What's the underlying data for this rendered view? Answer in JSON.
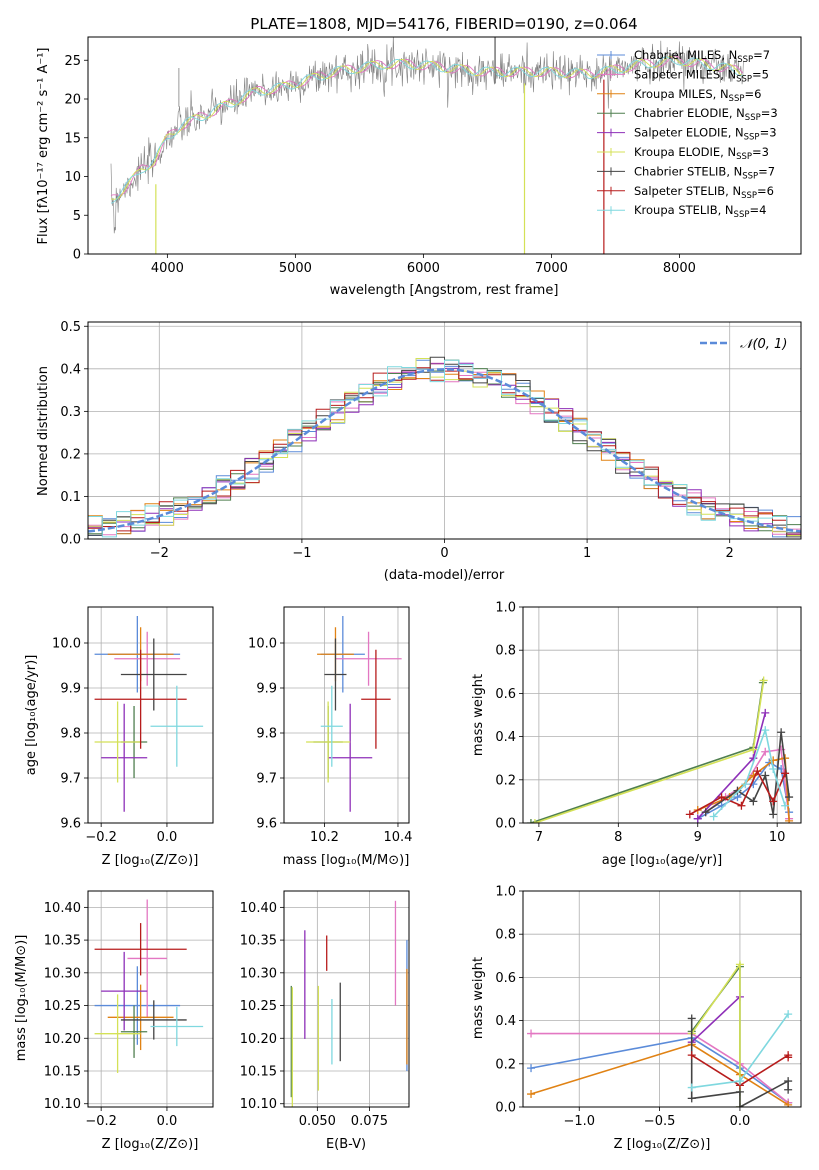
{
  "colors": {
    "Chabrier MILES": "#5b8bd9",
    "Salpeter MILES": "#e377c2",
    "Kroupa MILES": "#e08214",
    "Chabrier ELODIE": "#4f7f4f",
    "Salpeter ELODIE": "#8e2fb8",
    "Kroupa ELODIE": "#d4e157",
    "Chabrier STELIB": "#444444",
    "Salpeter STELIB": "#b71c1c",
    "Kroupa STELIB": "#7fd8df",
    "data": "#7f7f7f",
    "normal": "#5b8bd9"
  },
  "chart_data": [
    {
      "type": "line",
      "id": "spectrum",
      "title": "PLATE=1808, MJD=54176, FIBERID=0190, z=0.064",
      "xlabel": "wavelength [Angstrom, rest frame]",
      "ylabel": "Flux [fλ10⁻¹⁷ erg cm⁻² s⁻¹ A⁻¹]",
      "xlim": [
        3380,
        8950
      ],
      "ylim": [
        0,
        28
      ],
      "xticks": [
        4000,
        5000,
        6000,
        7000,
        8000
      ],
      "yticks": [
        0,
        5,
        10,
        15,
        20,
        25
      ],
      "legend_position": "right",
      "legend": [
        {
          "key": "Chabrier MILES",
          "label": "Chabrier MILES, N",
          "n": "=7"
        },
        {
          "key": "Salpeter MILES",
          "label": "Salpeter MILES, N",
          "n": "=5"
        },
        {
          "key": "Kroupa MILES",
          "label": "Kroupa MILES, N",
          "n": "=6"
        },
        {
          "key": "Chabrier ELODIE",
          "label": "Chabrier ELODIE, N",
          "n": "=3"
        },
        {
          "key": "Salpeter ELODIE",
          "label": "Salpeter ELODIE, N",
          "n": "=3"
        },
        {
          "key": "Kroupa ELODIE",
          "label": "Kroupa ELODIE, N",
          "n": "=3"
        },
        {
          "key": "Chabrier STELIB",
          "label": "Chabrier STELIB, N",
          "n": "=7"
        },
        {
          "key": "Salpeter STELIB",
          "label": "Salpeter STELIB, N",
          "n": "=6"
        },
        {
          "key": "Kroupa STELIB",
          "label": "Kroupa STELIB, N",
          "n": "=4"
        }
      ],
      "continuum": [
        [
          3560,
          7
        ],
        [
          3700,
          9
        ],
        [
          3800,
          11
        ],
        [
          3900,
          12
        ],
        [
          4000,
          15
        ],
        [
          4100,
          16.5
        ],
        [
          4300,
          18
        ],
        [
          4500,
          19.5
        ],
        [
          4700,
          21
        ],
        [
          4900,
          21.5
        ],
        [
          5100,
          22.5
        ],
        [
          5300,
          23.5
        ],
        [
          5500,
          24
        ],
        [
          5700,
          24.5
        ],
        [
          5900,
          24.5
        ],
        [
          6100,
          24.2
        ],
        [
          6300,
          23.8
        ],
        [
          6500,
          23.5
        ],
        [
          6700,
          23.5
        ],
        [
          6900,
          23.5
        ],
        [
          7100,
          23.4
        ],
        [
          7300,
          23.2
        ],
        [
          7500,
          23.8
        ],
        [
          7700,
          24.5
        ],
        [
          8000,
          25
        ],
        [
          8300,
          24.2
        ],
        [
          8500,
          23.5
        ]
      ]
    },
    {
      "type": "line",
      "id": "residual-histogram",
      "xlabel": "(data-model)/error",
      "ylabel": "Normed distribution",
      "xlim": [
        -2.5,
        2.5
      ],
      "ylim": [
        0,
        0.51
      ],
      "xticks": [
        -2,
        -1,
        0,
        1,
        2
      ],
      "yticks": [
        0.0,
        0.1,
        0.2,
        0.3,
        0.4,
        0.5
      ],
      "legend_label": "𝒩(0, 1)",
      "bin_width": 0.1
    },
    {
      "type": "scatter",
      "id": "age-vs-Z",
      "xlabel": "Z [log₁₀(Z/Z⊙)]",
      "ylabel": "age  [log₁₀(age/yr)]",
      "xlim": [
        -0.24,
        0.14
      ],
      "ylim": [
        9.6,
        10.08
      ],
      "xticks": [
        -0.2,
        0.0
      ],
      "yticks": [
        9.6,
        9.7,
        9.8,
        9.9,
        10.0
      ],
      "points": [
        {
          "key": "Chabrier MILES",
          "x": -0.09,
          "xerr": 0.13,
          "y": 9.975,
          "yerr": 0.085
        },
        {
          "key": "Salpeter MILES",
          "x": -0.06,
          "xerr": 0.1,
          "y": 9.965,
          "yerr": 0.06
        },
        {
          "key": "Kroupa MILES",
          "x": -0.08,
          "xerr": 0.1,
          "y": 9.975,
          "yerr": 0.06
        },
        {
          "key": "Chabrier ELODIE",
          "x": -0.1,
          "xerr": 0.04,
          "y": 9.78,
          "yerr": 0.08
        },
        {
          "key": "Salpeter ELODIE",
          "x": -0.13,
          "xerr": 0.07,
          "y": 9.745,
          "yerr": 0.12
        },
        {
          "key": "Kroupa ELODIE",
          "x": -0.15,
          "xerr": 0.07,
          "y": 9.78,
          "yerr": 0.09
        },
        {
          "key": "Chabrier STELIB",
          "x": -0.04,
          "xerr": 0.1,
          "y": 9.93,
          "yerr": 0.08
        },
        {
          "key": "Salpeter STELIB",
          "x": -0.08,
          "xerr": 0.14,
          "y": 9.875,
          "yerr": 0.11
        },
        {
          "key": "Kroupa STELIB",
          "x": 0.03,
          "xerr": 0.08,
          "y": 9.815,
          "yerr": 0.09
        }
      ]
    },
    {
      "type": "scatter",
      "id": "age-vs-mass",
      "xlabel": "mass [log₁₀(M/M⊙)]",
      "xlim": [
        10.09,
        10.43
      ],
      "ylim": [
        9.6,
        10.08
      ],
      "xticks": [
        10.2,
        10.4
      ],
      "yticks": [
        9.6,
        9.7,
        9.8,
        9.9,
        10.0
      ],
      "points": [
        {
          "key": "Chabrier MILES",
          "x": 10.25,
          "xerr": 0.06,
          "y": 9.975,
          "yerr": 0.085
        },
        {
          "key": "Salpeter MILES",
          "x": 10.32,
          "xerr": 0.09,
          "y": 9.965,
          "yerr": 0.06
        },
        {
          "key": "Kroupa MILES",
          "x": 10.23,
          "xerr": 0.05,
          "y": 9.975,
          "yerr": 0.06
        },
        {
          "key": "Chabrier ELODIE",
          "x": 10.21,
          "xerr": 0.04,
          "y": 9.78,
          "yerr": 0.08
        },
        {
          "key": "Salpeter ELODIE",
          "x": 10.27,
          "xerr": 0.06,
          "y": 9.745,
          "yerr": 0.12
        },
        {
          "key": "Kroupa ELODIE",
          "x": 10.21,
          "xerr": 0.06,
          "y": 9.78,
          "yerr": 0.09
        },
        {
          "key": "Chabrier STELIB",
          "x": 10.23,
          "xerr": 0.03,
          "y": 9.93,
          "yerr": 0.08
        },
        {
          "key": "Salpeter STELIB",
          "x": 10.34,
          "xerr": 0.04,
          "y": 9.875,
          "yerr": 0.11
        },
        {
          "key": "Kroupa STELIB",
          "x": 10.22,
          "xerr": 0.03,
          "y": 9.815,
          "yerr": 0.09
        }
      ]
    },
    {
      "type": "line",
      "id": "weight-vs-age",
      "xlabel": "age  [log₁₀(age/yr)]",
      "ylabel": "mass weight",
      "xlim": [
        6.8,
        10.3
      ],
      "ylim": [
        0,
        1
      ],
      "xticks": [
        7,
        8,
        9,
        10
      ],
      "yticks": [
        0.0,
        0.2,
        0.4,
        0.6,
        0.8,
        1.0
      ],
      "series": [
        {
          "key": "Chabrier MILES",
          "x": [
            9.0,
            9.3,
            9.5,
            9.7,
            9.9,
            10.05,
            10.15
          ],
          "y": [
            0.02,
            0.08,
            0.12,
            0.18,
            0.28,
            0.25,
            0.05
          ]
        },
        {
          "key": "Salpeter MILES",
          "x": [
            9.1,
            9.35,
            9.6,
            9.85,
            10.05,
            10.15
          ],
          "y": [
            0.05,
            0.12,
            0.18,
            0.33,
            0.34,
            0.02
          ]
        },
        {
          "key": "Kroupa MILES",
          "x": [
            9.0,
            9.4,
            9.7,
            9.95,
            10.1,
            10.15
          ],
          "y": [
            0.06,
            0.12,
            0.22,
            0.29,
            0.3,
            0.01
          ]
        },
        {
          "key": "Chabrier ELODIE",
          "x": [
            6.9,
            9.7,
            9.82
          ],
          "y": [
            0.0,
            0.35,
            0.65
          ]
        },
        {
          "key": "Salpeter ELODIE",
          "x": [
            9.0,
            9.7,
            9.85
          ],
          "y": [
            0.02,
            0.3,
            0.51
          ]
        },
        {
          "key": "Kroupa ELODIE",
          "x": [
            6.95,
            9.7,
            9.83
          ],
          "y": [
            0.0,
            0.34,
            0.66
          ]
        },
        {
          "key": "Chabrier STELIB",
          "x": [
            9.1,
            9.5,
            9.7,
            9.85,
            9.95,
            10.05,
            10.15
          ],
          "y": [
            0.05,
            0.15,
            0.1,
            0.22,
            0.04,
            0.42,
            0.12
          ]
        },
        {
          "key": "Salpeter STELIB",
          "x": [
            8.9,
            9.3,
            9.55,
            9.75,
            9.95,
            10.1
          ],
          "y": [
            0.04,
            0.12,
            0.08,
            0.24,
            0.1,
            0.23
          ]
        },
        {
          "key": "Kroupa STELIB",
          "x": [
            9.2,
            9.6,
            9.85,
            9.95,
            10.1
          ],
          "y": [
            0.03,
            0.18,
            0.43,
            0.25,
            0.08
          ]
        }
      ]
    },
    {
      "type": "scatter",
      "id": "mass-vs-Z",
      "xlabel": "Z [log₁₀(Z/Z⊙)]",
      "ylabel": "mass [log₁₀(M/M⊙)]",
      "xlim": [
        -0.24,
        0.14
      ],
      "ylim": [
        10.095,
        10.425
      ],
      "xticks": [
        -0.2,
        0.0
      ],
      "yticks": [
        10.1,
        10.15,
        10.2,
        10.25,
        10.3,
        10.35,
        10.4
      ],
      "points": [
        {
          "key": "Chabrier MILES",
          "x": -0.09,
          "xerr": 0.13,
          "y": 10.25,
          "yerr": 0.06
        },
        {
          "key": "Salpeter MILES",
          "x": -0.06,
          "xerr": 0.06,
          "y": 10.322,
          "yerr": 0.09
        },
        {
          "key": "Kroupa MILES",
          "x": -0.08,
          "xerr": 0.1,
          "y": 10.232,
          "yerr": 0.05
        },
        {
          "key": "Chabrier ELODIE",
          "x": -0.1,
          "xerr": 0.04,
          "y": 10.21,
          "yerr": 0.04
        },
        {
          "key": "Salpeter ELODIE",
          "x": -0.13,
          "xerr": 0.07,
          "y": 10.272,
          "yerr": 0.06
        },
        {
          "key": "Kroupa ELODIE",
          "x": -0.15,
          "xerr": 0.07,
          "y": 10.207,
          "yerr": 0.06
        },
        {
          "key": "Chabrier STELIB",
          "x": -0.04,
          "xerr": 0.1,
          "y": 10.228,
          "yerr": 0.03
        },
        {
          "key": "Salpeter STELIB",
          "x": -0.08,
          "xerr": 0.14,
          "y": 10.336,
          "yerr": 0.04
        },
        {
          "key": "Kroupa STELIB",
          "x": 0.03,
          "xerr": 0.08,
          "y": 10.218,
          "yerr": 0.03
        }
      ]
    },
    {
      "type": "scatter",
      "id": "mass-vs-ebv",
      "xlabel": "E(B-V)",
      "xlim": [
        0.034,
        0.094
      ],
      "ylim": [
        10.095,
        10.425
      ],
      "xticks": [
        0.05,
        0.075
      ],
      "yticks": [
        10.1,
        10.15,
        10.2,
        10.25,
        10.3,
        10.35,
        10.4
      ],
      "points": [
        {
          "key": "Chabrier MILES",
          "x": 0.093,
          "xerr": 0,
          "y": 10.25,
          "yerr": 0.1
        },
        {
          "key": "Salpeter MILES",
          "x": 0.0875,
          "xerr": 0,
          "y": 10.33,
          "yerr": 0.08
        },
        {
          "key": "Kroupa MILES",
          "x": 0.093,
          "xerr": 0,
          "y": 10.233,
          "yerr": 0.073
        },
        {
          "key": "Chabrier ELODIE",
          "x": 0.0375,
          "xerr": 0,
          "y": 10.195,
          "yerr": 0.085
        },
        {
          "key": "Salpeter ELODIE",
          "x": 0.044,
          "xerr": 0,
          "y": 10.282,
          "yerr": 0.083
        },
        {
          "key": "Kroupa ELODIE",
          "x": 0.0505,
          "xerr": 0,
          "y": 10.2,
          "yerr": 0.08
        },
        {
          "key": "Chabrier STELIB",
          "x": 0.061,
          "xerr": 0,
          "y": 10.225,
          "yerr": 0.06
        },
        {
          "key": "Salpeter STELIB",
          "x": 0.0545,
          "xerr": 0,
          "y": 10.33,
          "yerr": 0.027
        },
        {
          "key": "Kroupa STELIB",
          "x": 0.057,
          "xerr": 0,
          "y": 10.21,
          "yerr": 0.05
        },
        {
          "key": "Kroupa ELODIE",
          "x": 0.038,
          "xerr": 0,
          "y": 10.178,
          "yerr": 0.1
        }
      ]
    },
    {
      "type": "line",
      "id": "weight-vs-Z",
      "xlabel": "Z [log₁₀(Z/Z⊙)]",
      "ylabel": "mass weight",
      "xlim": [
        -1.35,
        0.38
      ],
      "ylim": [
        0,
        1
      ],
      "xticks": [
        -1.0,
        -0.5,
        0.0
      ],
      "yticks": [
        0.0,
        0.2,
        0.4,
        0.6,
        0.8,
        1.0
      ],
      "series": [
        {
          "key": "Chabrier MILES",
          "x": [
            -1.3,
            -0.3,
            0.0,
            0.3
          ],
          "y": [
            0.18,
            0.32,
            0.18,
            0.02
          ]
        },
        {
          "key": "Salpeter MILES",
          "x": [
            -1.3,
            -0.3,
            0.0,
            0.3
          ],
          "y": [
            0.34,
            0.34,
            0.2,
            0.02
          ]
        },
        {
          "key": "Kroupa MILES",
          "x": [
            -1.3,
            -0.3,
            0.0,
            0.3
          ],
          "y": [
            0.06,
            0.29,
            0.15,
            0.01
          ]
        },
        {
          "key": "Chabrier ELODIE",
          "x": [
            -0.3,
            0.0,
            0.0
          ],
          "y": [
            0.35,
            0.65,
            0.0
          ]
        },
        {
          "key": "Salpeter ELODIE",
          "x": [
            -0.3,
            0.0
          ],
          "y": [
            0.3,
            0.51
          ]
        },
        {
          "key": "Kroupa ELODIE",
          "x": [
            -0.3,
            0.0,
            0.0
          ],
          "y": [
            0.34,
            0.66,
            0.0
          ]
        },
        {
          "key": "Chabrier STELIB",
          "x": [
            -0.3,
            -0.3,
            0.0,
            0.0,
            0.3,
            0.3
          ],
          "y": [
            0.41,
            0.04,
            0.07,
            0.0,
            0.12,
            0.08
          ]
        },
        {
          "key": "Salpeter STELIB",
          "x": [
            -0.3,
            0.0,
            0.3,
            0.3
          ],
          "y": [
            0.24,
            0.1,
            0.24,
            0.23
          ]
        },
        {
          "key": "Kroupa STELIB",
          "x": [
            -0.3,
            0.0,
            0.3
          ],
          "y": [
            0.09,
            0.12,
            0.43
          ]
        }
      ]
    }
  ]
}
